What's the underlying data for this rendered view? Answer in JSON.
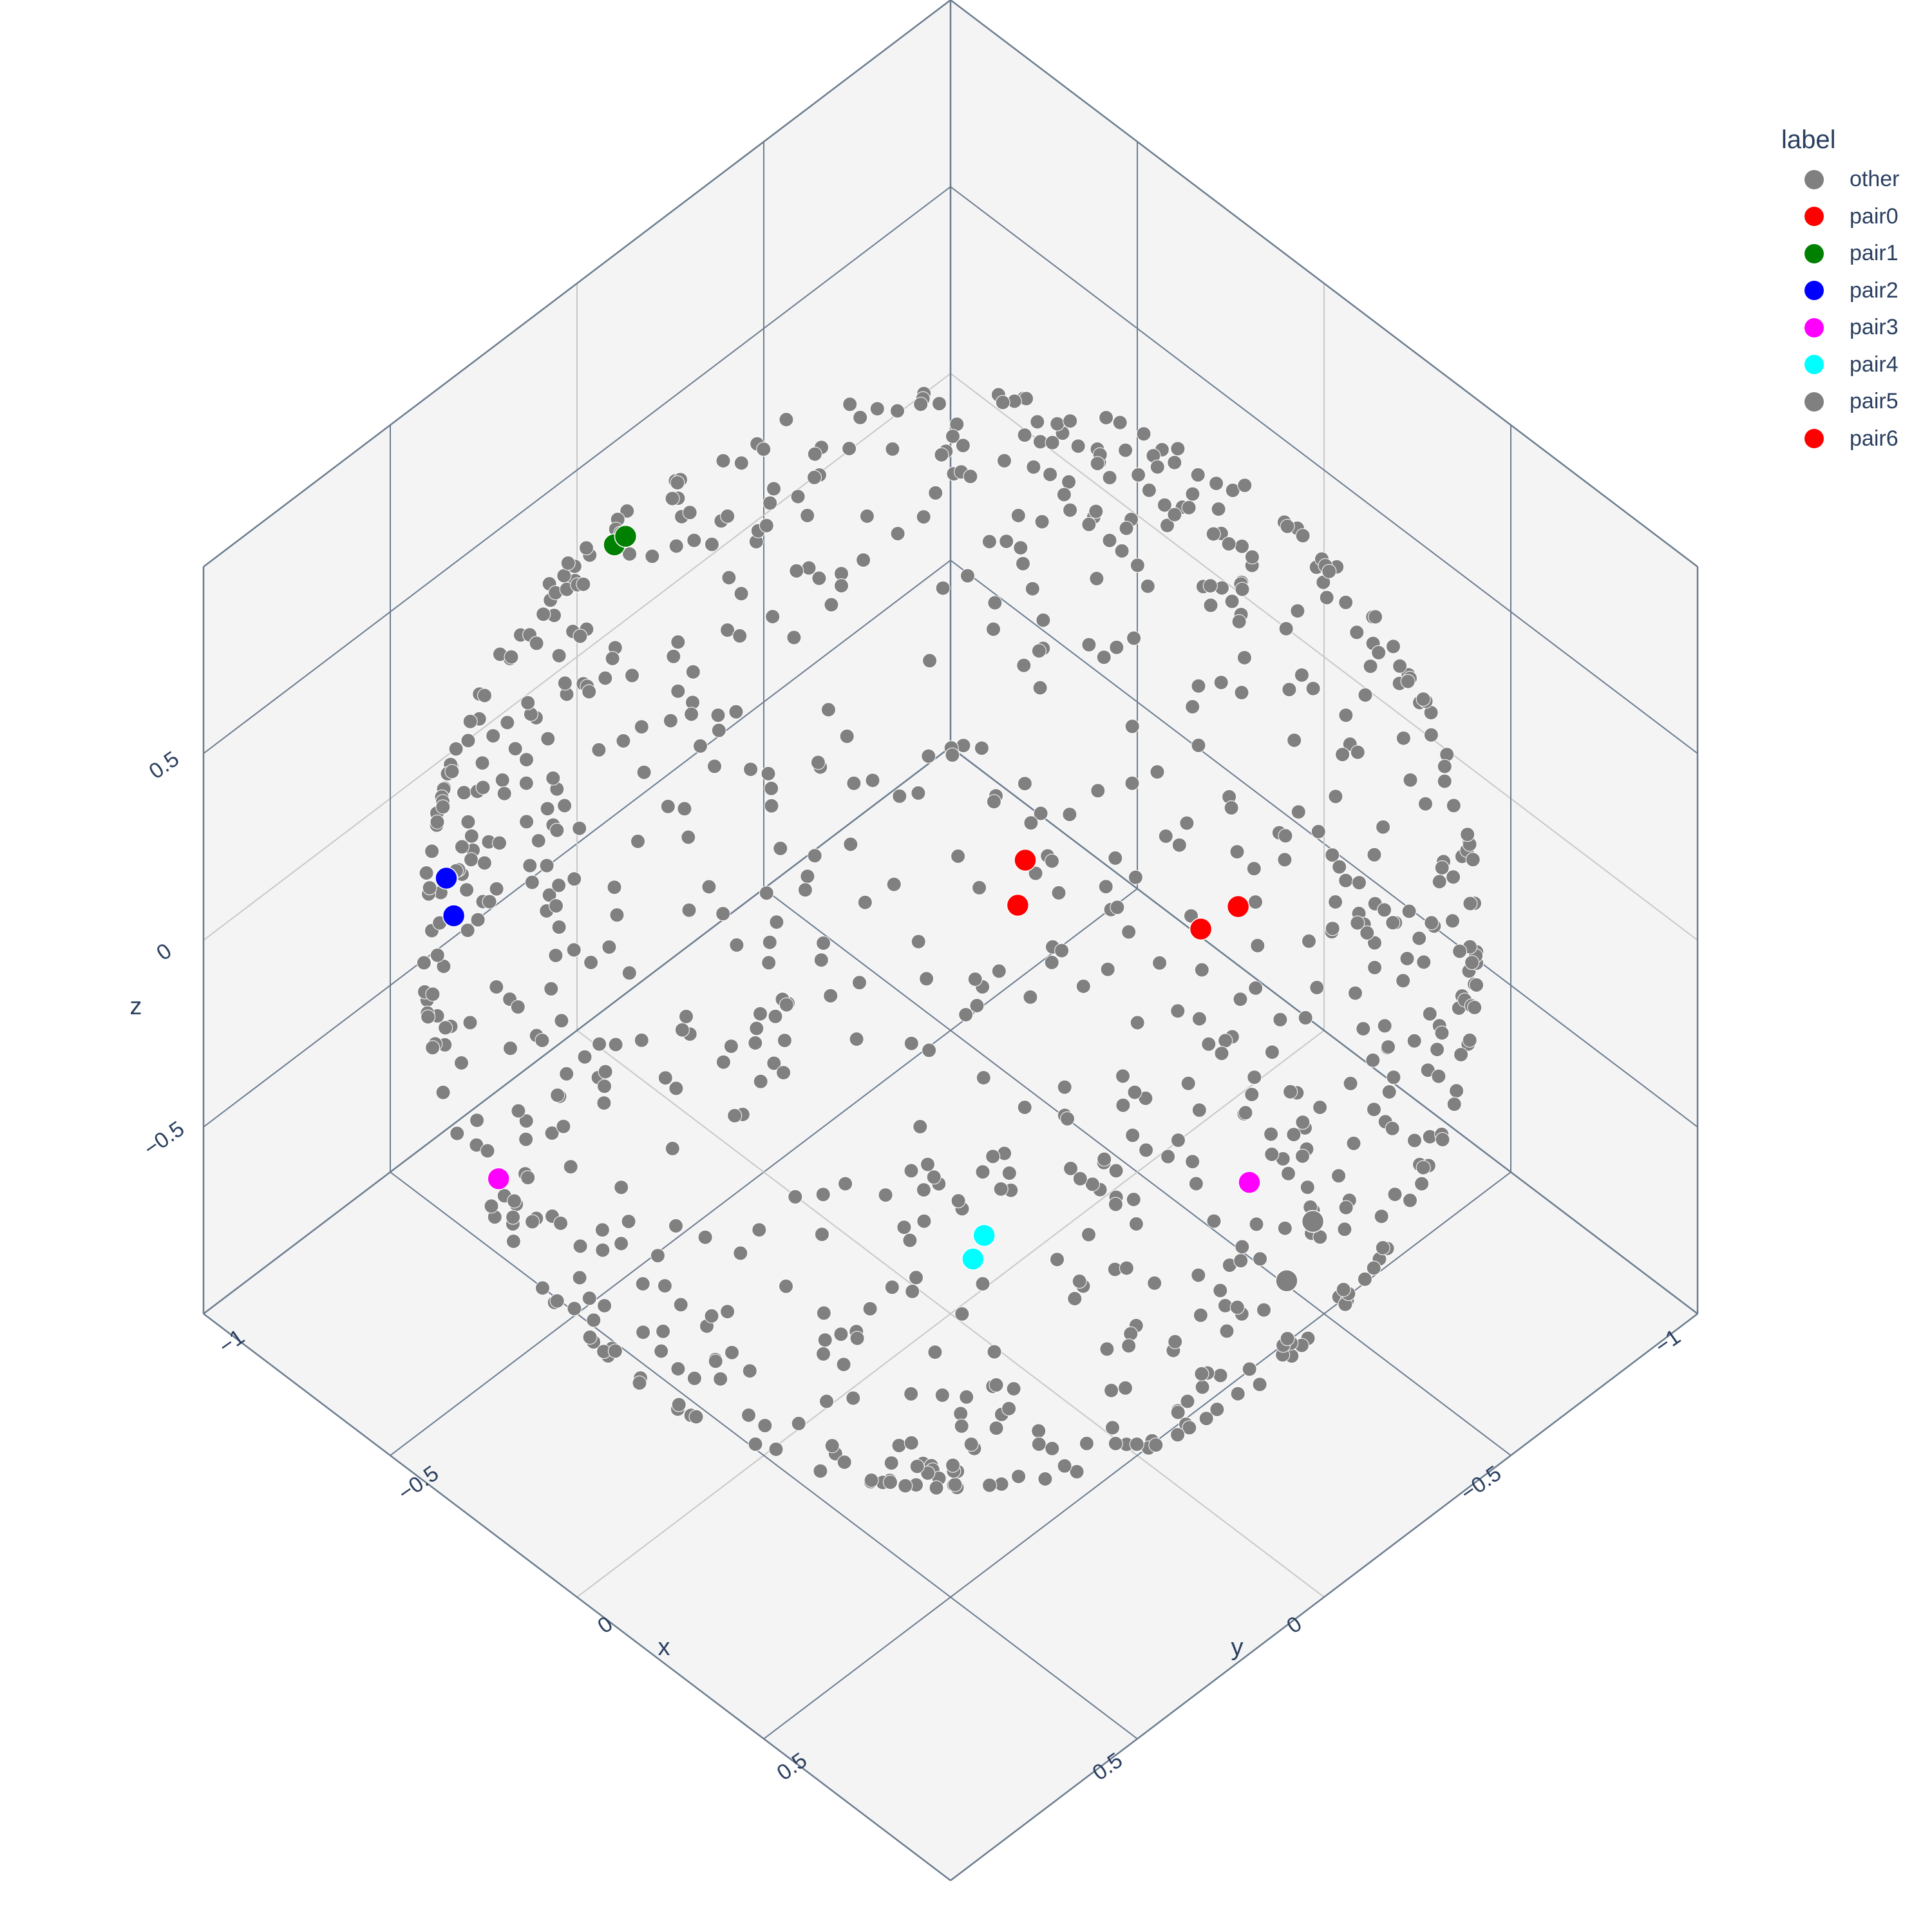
{
  "chart_data": {
    "type": "scatter3d",
    "title": "",
    "axes": {
      "x": {
        "title": "x",
        "range": [
          -1,
          1
        ],
        "ticks": [
          -1,
          -0.5,
          0,
          0.5
        ],
        "tick_labels": [
          "−1",
          "−0.5",
          "0",
          "0.5"
        ]
      },
      "y": {
        "title": "y",
        "range": [
          -1,
          1
        ],
        "ticks": [
          -1,
          -0.5,
          0,
          0.5
        ],
        "tick_labels": [
          "−1",
          "−0.5",
          "0",
          "0.5"
        ]
      },
      "z": {
        "title": "z",
        "range": [
          -1,
          1
        ],
        "ticks": [
          -0.5,
          0,
          0.5
        ],
        "tick_labels": [
          "−0.5",
          "0",
          "0.5"
        ]
      }
    },
    "grid": true,
    "legend": {
      "title": "label",
      "placement": "top-right"
    },
    "background_points": {
      "series": "other",
      "count": 900,
      "distribution": "uniform on unit sphere surface"
    },
    "series": [
      {
        "name": "other",
        "color": "#808080",
        "points": []
      },
      {
        "name": "pair0",
        "color": "#ff0000",
        "points": [
          [
            -0.45,
            -0.65,
            -0.62
          ],
          [
            -0.42,
            -0.6,
            -0.68
          ]
        ]
      },
      {
        "name": "pair1",
        "color": "#008000",
        "points": [
          [
            -0.95,
            -0.05,
            0.3
          ],
          [
            -0.95,
            -0.08,
            0.3
          ]
        ]
      },
      {
        "name": "pair2",
        "color": "#0000ff",
        "points": [
          [
            -0.6,
            0.75,
            0.28
          ],
          [
            -0.55,
            0.78,
            0.24
          ]
        ]
      },
      {
        "name": "pair3",
        "color": "#ff00ff",
        "points": [
          [
            -0.25,
            0.96,
            -0.1
          ],
          [
            0.3,
            -0.5,
            -0.8
          ]
        ]
      },
      {
        "name": "pair4",
        "color": "#00ffff",
        "points": [
          [
            -0.08,
            -0.17,
            -0.98
          ],
          [
            -0.06,
            -0.12,
            -0.99
          ]
        ]
      },
      {
        "name": "pair5",
        "color": "#808080",
        "points": [
          [
            0.55,
            -0.35,
            -0.76
          ],
          [
            0.5,
            -0.47,
            -0.73
          ]
        ]
      },
      {
        "name": "pair6",
        "color": "#ff0000",
        "points": [
          [
            -0.1,
            -0.77,
            -0.63
          ],
          [
            -0.05,
            -0.82,
            -0.57
          ]
        ]
      }
    ]
  }
}
